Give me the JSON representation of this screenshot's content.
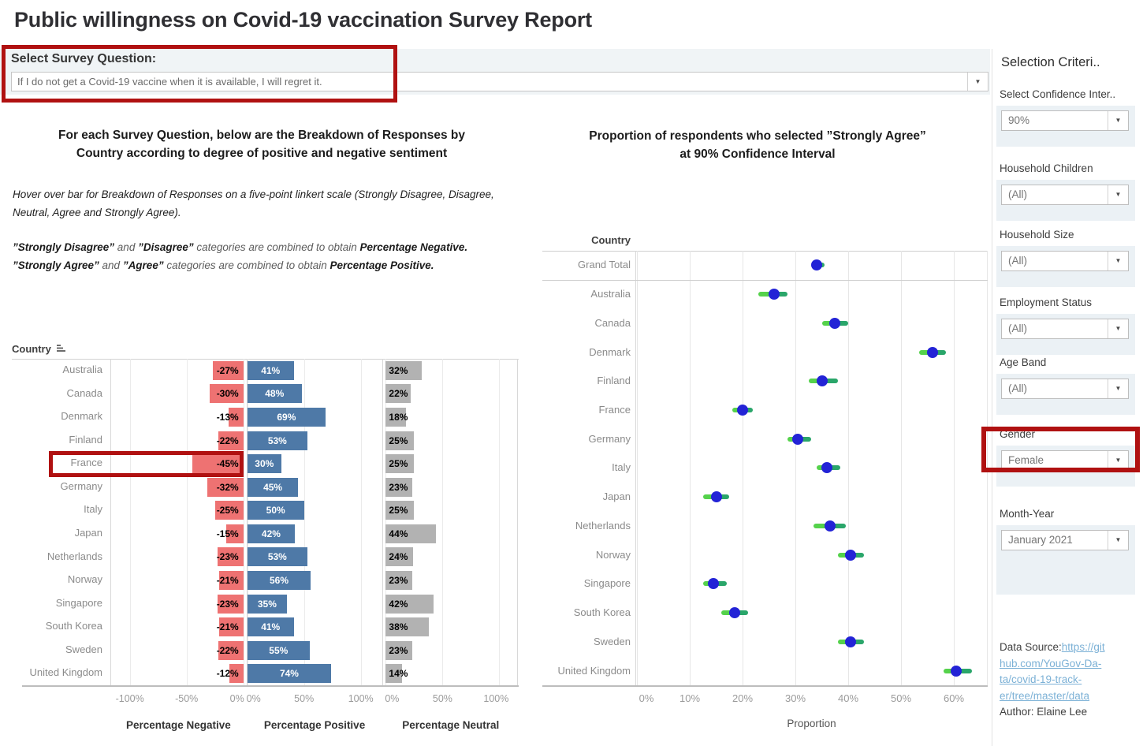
{
  "page": {
    "title": "Public willingness on Covid-19 vaccination Survey Report"
  },
  "survey_filter": {
    "label": "Select Survey Question:",
    "value": "If I do not get a Covid-19 vaccine when it is available, I will regret it."
  },
  "bar_chart": {
    "heading_line1": "For each Survey Question, below are the Breakdown of Responses by",
    "heading_line2": "Country according to degree of positive and negative sentiment",
    "note1": "Hover over bar for Breakdown of Responses on a five-point linkert scale (Strongly Disagree, Disagree, Neutral, Agree and Strongly Agree).",
    "note2_runs": [
      {
        "t": "”Strongly Disagree”",
        "b": true
      },
      {
        "t": " and ",
        "b": false
      },
      {
        "t": "”Disagree”",
        "b": true
      },
      {
        "t": " categories are combined to obtain ",
        "b": false
      },
      {
        "t": "Percentage Negative.",
        "b": true
      }
    ],
    "note3_runs": [
      {
        "t": "”Strongly Agree”",
        "b": true
      },
      {
        "t": " and ",
        "b": false
      },
      {
        "t": "”Agree”",
        "b": true
      },
      {
        "t": " categories are combined to obtain ",
        "b": false
      },
      {
        "t": "Percentage Positive.",
        "b": true
      }
    ],
    "country_header": "Country",
    "axis_ticks": {
      "negative": [
        "-100%",
        "-50%",
        "0%"
      ],
      "positive": [
        "0%",
        "50%",
        "100%"
      ],
      "neutral": [
        "0%",
        "50%",
        "100%"
      ]
    },
    "panel_titles": [
      "Percentage Negative",
      "Percentage Positive",
      "Percentage Neutral"
    ]
  },
  "dot_chart": {
    "title_line1": "Proportion of respondents who selected ”Strongly Agree”",
    "title_line2": "at 90% Confidence Interval",
    "country_header": "Country",
    "x_ticks": [
      "0%",
      "10%",
      "20%",
      "30%",
      "40%",
      "50%",
      "60%"
    ],
    "xlabel": "Proportion"
  },
  "sidebar": {
    "title": "Selection Criteri..",
    "filters": [
      {
        "label": "Select Confidence Inter..",
        "value": "90%"
      },
      {
        "label": "Household Children",
        "value": "(All)"
      },
      {
        "label": "Household Size",
        "value": "(All)"
      },
      {
        "label": "Employment Status",
        "value": "(All)"
      },
      {
        "label": "Age Band",
        "value": "(All)"
      },
      {
        "label": "Gender",
        "value": "Female"
      },
      {
        "label": "Month-Year",
        "value": "January 2021"
      }
    ],
    "datasource_label": "Data Source:",
    "datasource_link_lines": [
      "https://git",
      "hub.com/YouGov-Da-",
      "ta/covid-19-track-",
      "er/tree/master/data"
    ],
    "author": "Author: Elaine Lee"
  },
  "colors": {
    "bar_negative": "#ee7272",
    "bar_positive": "#4e79a7",
    "bar_neutral": "#b2b2b2",
    "dot_blue": "#2323d6",
    "ci_left_green": "#55d24b",
    "ci_right_green": "#2aa66a",
    "annotation_red": "#b01111",
    "panel_bg": "#ebf1f5",
    "filter_bar_bg": "#f0f4f6",
    "link_blue": "#7cb1d6"
  },
  "chart_data": [
    {
      "type": "bar",
      "orientation": "horizontal",
      "title": "For each Survey Question, below are the Breakdown of Responses by Country according to degree of positive and negative sentiment",
      "categories": [
        "Australia",
        "Canada",
        "Denmark",
        "Finland",
        "France",
        "Germany",
        "Italy",
        "Japan",
        "Netherlands",
        "Norway",
        "Singapore",
        "South Korea",
        "Sweden",
        "United Kingdom"
      ],
      "series": [
        {
          "name": "Percentage Negative",
          "values": [
            -27,
            -30,
            -13,
            -22,
            -45,
            -32,
            -25,
            -15,
            -23,
            -21,
            -23,
            -21,
            -22,
            -12
          ]
        },
        {
          "name": "Percentage Positive",
          "values": [
            41,
            48,
            69,
            53,
            30,
            45,
            50,
            42,
            53,
            56,
            35,
            41,
            55,
            74
          ]
        },
        {
          "name": "Percentage Neutral",
          "values": [
            32,
            22,
            18,
            25,
            25,
            23,
            25,
            44,
            24,
            23,
            42,
            38,
            23,
            14
          ]
        }
      ],
      "value_format": "percent",
      "panel_axis_ranges": {
        "negative": [
          -100,
          0
        ],
        "positive": [
          0,
          100
        ],
        "neutral": [
          0,
          100
        ]
      },
      "grid": true
    },
    {
      "type": "scatter",
      "title": "Proportion of respondents who selected ”Strongly Agree” at 90% Confidence Interval",
      "xlabel": "Proportion",
      "ylabel": "Country",
      "x_range": [
        0,
        66
      ],
      "categories": [
        "Grand Total",
        "Australia",
        "Canada",
        "Denmark",
        "Finland",
        "France",
        "Germany",
        "Italy",
        "Japan",
        "Netherlands",
        "Norway",
        "Singapore",
        "South Korea",
        "Sweden",
        "United Kingdom"
      ],
      "values": [
        34,
        26,
        37.5,
        56,
        35,
        20,
        30.5,
        36,
        15,
        36.5,
        40.5,
        14.5,
        18.5,
        40.5,
        60.5
      ],
      "ci_low": [
        33.5,
        23,
        35,
        53.5,
        32.5,
        18,
        28.5,
        34,
        12.5,
        33.5,
        38,
        12.5,
        16,
        38,
        58
      ],
      "ci_high": [
        35.5,
        28.5,
        40,
        58.5,
        38,
        22,
        33,
        38.5,
        17.5,
        39.5,
        43,
        17,
        21,
        43,
        63.5
      ]
    }
  ]
}
